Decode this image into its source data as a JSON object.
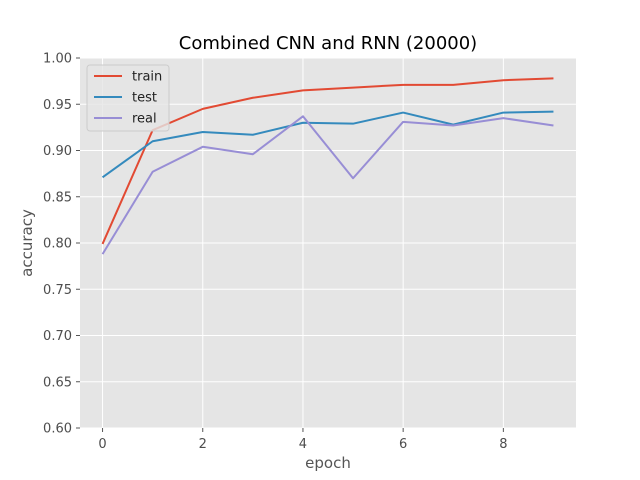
{
  "chart_data": {
    "type": "line",
    "title": "Combined CNN and RNN (20000)",
    "xlabel": "epoch",
    "ylabel": "accuracy",
    "x": [
      0,
      1,
      2,
      3,
      4,
      5,
      6,
      7,
      8,
      9
    ],
    "xlim": [
      -0.45,
      9.45
    ],
    "ylim": [
      0.6,
      1.0
    ],
    "xticks": [
      0,
      2,
      4,
      6,
      8
    ],
    "xtick_labels": [
      "0",
      "2",
      "4",
      "6",
      "8"
    ],
    "yticks": [
      0.6,
      0.65,
      0.7,
      0.75,
      0.8,
      0.85,
      0.9,
      0.95,
      1.0
    ],
    "ytick_labels": [
      "0.60",
      "0.65",
      "0.70",
      "0.75",
      "0.80",
      "0.85",
      "0.90",
      "0.95",
      "1.00"
    ],
    "grid": true,
    "legend_position": "top-left",
    "background_color": "#e5e5e5",
    "grid_color": "#ffffff",
    "series": [
      {
        "name": "train",
        "color": "#e24a33",
        "values": [
          0.799,
          0.922,
          0.945,
          0.957,
          0.965,
          0.968,
          0.971,
          0.971,
          0.976,
          0.978
        ]
      },
      {
        "name": "test",
        "color": "#348abd",
        "values": [
          0.871,
          0.91,
          0.92,
          0.917,
          0.93,
          0.929,
          0.941,
          0.928,
          0.941,
          0.942
        ]
      },
      {
        "name": "real",
        "color": "#988ed5",
        "values": [
          0.788,
          0.877,
          0.904,
          0.896,
          0.937,
          0.87,
          0.931,
          0.927,
          0.935,
          0.927
        ]
      }
    ]
  }
}
